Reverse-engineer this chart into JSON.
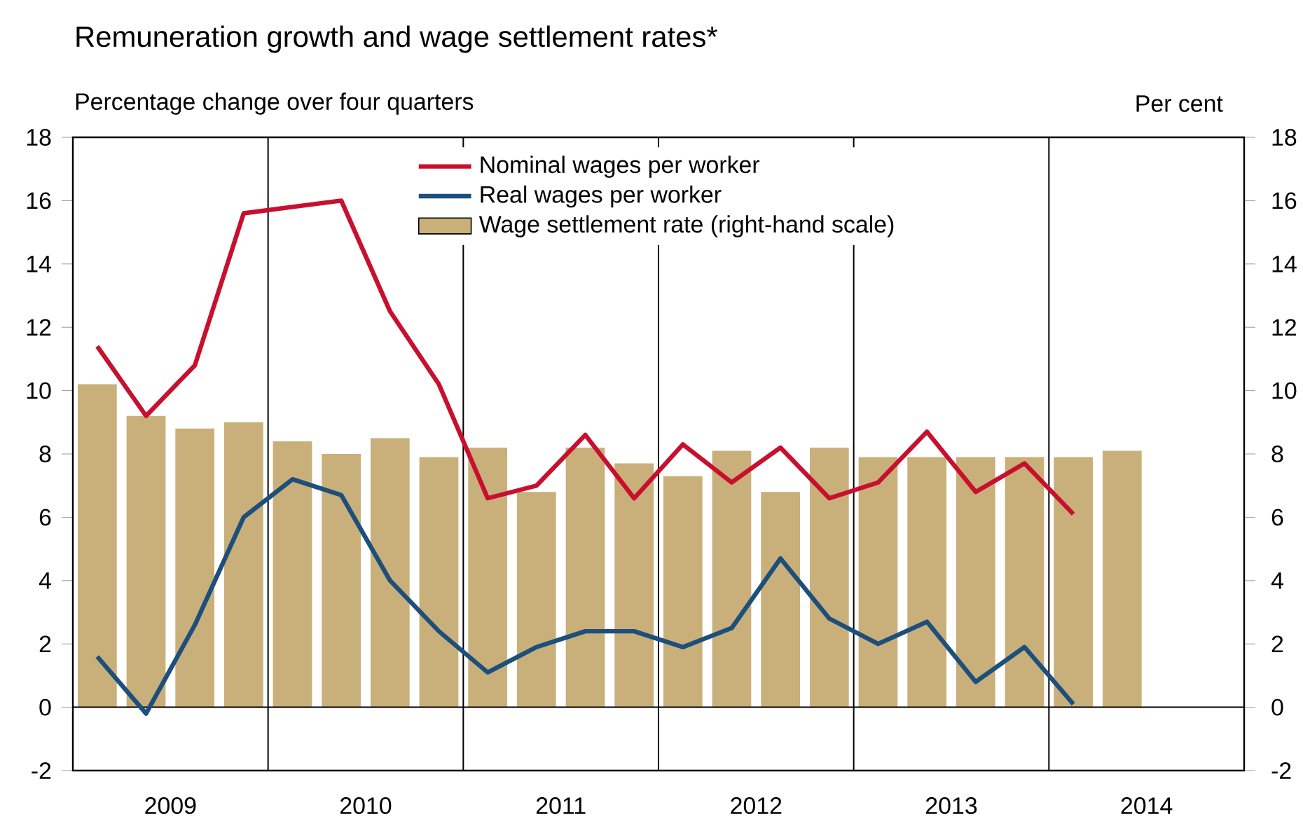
{
  "chart_data": {
    "type": "line",
    "title": "Remuneration growth and wage settlement rates*",
    "ylabel": "Percentage change over four quarters",
    "y2label": "Per cent",
    "x": [
      2009.125,
      2009.375,
      2009.625,
      2009.875,
      2010.125,
      2010.375,
      2010.625,
      2010.875,
      2011.125,
      2011.375,
      2011.625,
      2011.875,
      2012.125,
      2012.375,
      2012.625,
      2012.875,
      2013.125,
      2013.375,
      2013.625,
      2013.875,
      2014.125,
      2014.375
    ],
    "series": [
      {
        "name": "Nominal wages per worker",
        "color": "#c8102e",
        "values": [
          11.4,
          9.2,
          10.8,
          15.6,
          15.8,
          16.0,
          12.5,
          10.2,
          6.6,
          7.0,
          8.6,
          6.6,
          8.3,
          7.1,
          8.2,
          6.6,
          7.1,
          8.7,
          6.8,
          7.7,
          6.1,
          null
        ]
      },
      {
        "name": "Real wages per worker",
        "color": "#1d4f7c",
        "values": [
          1.6,
          -0.2,
          2.6,
          6.0,
          7.2,
          6.7,
          4.0,
          2.4,
          1.1,
          1.9,
          2.4,
          2.4,
          1.9,
          2.5,
          4.7,
          2.8,
          2.0,
          2.7,
          0.8,
          1.9,
          0.1,
          null
        ]
      },
      {
        "name": "Wage settlement rate (right-hand scale)",
        "type": "bar",
        "axis": "y2",
        "color": "#c9b07a",
        "values": [
          10.2,
          9.2,
          8.8,
          9.0,
          8.4,
          8.0,
          8.5,
          7.9,
          8.2,
          6.8,
          8.2,
          7.7,
          7.3,
          8.1,
          6.8,
          8.2,
          7.9,
          7.9,
          7.9,
          7.9,
          7.9,
          8.1
        ]
      }
    ],
    "xlim": [
      2009,
      2015
    ],
    "xticks": [
      {
        "value": 2009.5,
        "label": "2009"
      },
      {
        "value": 2010.5,
        "label": "2010"
      },
      {
        "value": 2011.5,
        "label": "2011"
      },
      {
        "value": 2012.5,
        "label": "2012"
      },
      {
        "value": 2013.5,
        "label": "2013"
      },
      {
        "value": 2014.5,
        "label": "2014"
      }
    ],
    "ylim": [
      -2,
      18
    ],
    "yticks": [
      -2,
      0,
      2,
      4,
      6,
      8,
      10,
      12,
      14,
      16,
      18
    ],
    "y2lim": [
      -2,
      18
    ],
    "y2ticks": [
      -2,
      0,
      2,
      4,
      6,
      8,
      10,
      12,
      14,
      16,
      18
    ],
    "ref_lines": [
      {
        "axis": "y",
        "value": 0,
        "color": "#000000"
      },
      {
        "axis": "x",
        "value": 2010,
        "color": "#000000"
      },
      {
        "axis": "x",
        "value": 2011,
        "color": "#000000"
      },
      {
        "axis": "x",
        "value": 2012,
        "color": "#000000"
      },
      {
        "axis": "x",
        "value": 2013,
        "color": "#000000"
      },
      {
        "axis": "x",
        "value": 2014,
        "color": "#000000"
      }
    ],
    "legend": "top"
  }
}
